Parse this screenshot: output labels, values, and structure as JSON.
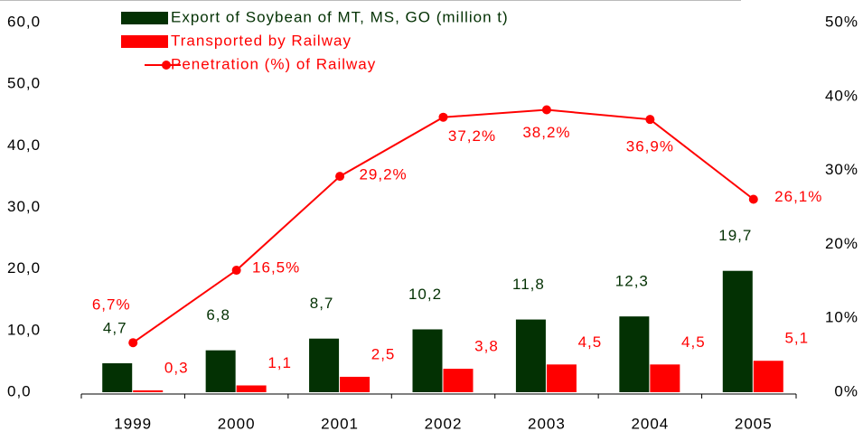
{
  "chart_data": {
    "type": "bar",
    "categories": [
      "1999",
      "2000",
      "2001",
      "2002",
      "2003",
      "2004",
      "2005"
    ],
    "series": [
      {
        "name": "Export of Soybean of MT, MS, GO (million t)",
        "type": "bar",
        "color": "#033103",
        "values": [
          4.7,
          6.8,
          8.7,
          10.2,
          11.8,
          12.3,
          19.7
        ],
        "value_labels": [
          "4,7",
          "6,8",
          "8,7",
          "10,2",
          "11,8",
          "12,3",
          "19,7"
        ]
      },
      {
        "name": "Transported by Railway",
        "type": "bar",
        "color": "#ff0000",
        "values": [
          0.3,
          1.1,
          2.5,
          3.8,
          4.5,
          4.5,
          5.1
        ],
        "value_labels": [
          "0,3",
          "1,1",
          "2,5",
          "3,8",
          "4,5",
          "4,5",
          "5,1"
        ]
      },
      {
        "name": "Penetration (%) of Railway",
        "type": "line",
        "axis": "y2",
        "color": "#ff0000",
        "values": [
          6.7,
          16.5,
          29.2,
          37.2,
          38.2,
          36.9,
          26.1
        ],
        "value_labels": [
          "6,7%",
          "16,5%",
          "29,2%",
          "37,2%",
          "38,2%",
          "36,9%",
          "26,1%"
        ]
      }
    ],
    "ylim": [
      0,
      60
    ],
    "yticks": [
      {
        "value": 0,
        "label": "0,0"
      },
      {
        "value": 10,
        "label": "10,0"
      },
      {
        "value": 20,
        "label": "20,0"
      },
      {
        "value": 30,
        "label": "30,0"
      },
      {
        "value": 40,
        "label": "40,0"
      },
      {
        "value": 50,
        "label": "50,0"
      },
      {
        "value": 60,
        "label": "60,0"
      }
    ],
    "y2lim": [
      0,
      50
    ],
    "y2ticks": [
      {
        "value": 0,
        "label": "0%"
      },
      {
        "value": 10,
        "label": "10%"
      },
      {
        "value": 20,
        "label": "20%"
      },
      {
        "value": 30,
        "label": "30%"
      },
      {
        "value": 40,
        "label": "40%"
      },
      {
        "value": 50,
        "label": "50%"
      }
    ],
    "grid": false,
    "legend": "top"
  }
}
